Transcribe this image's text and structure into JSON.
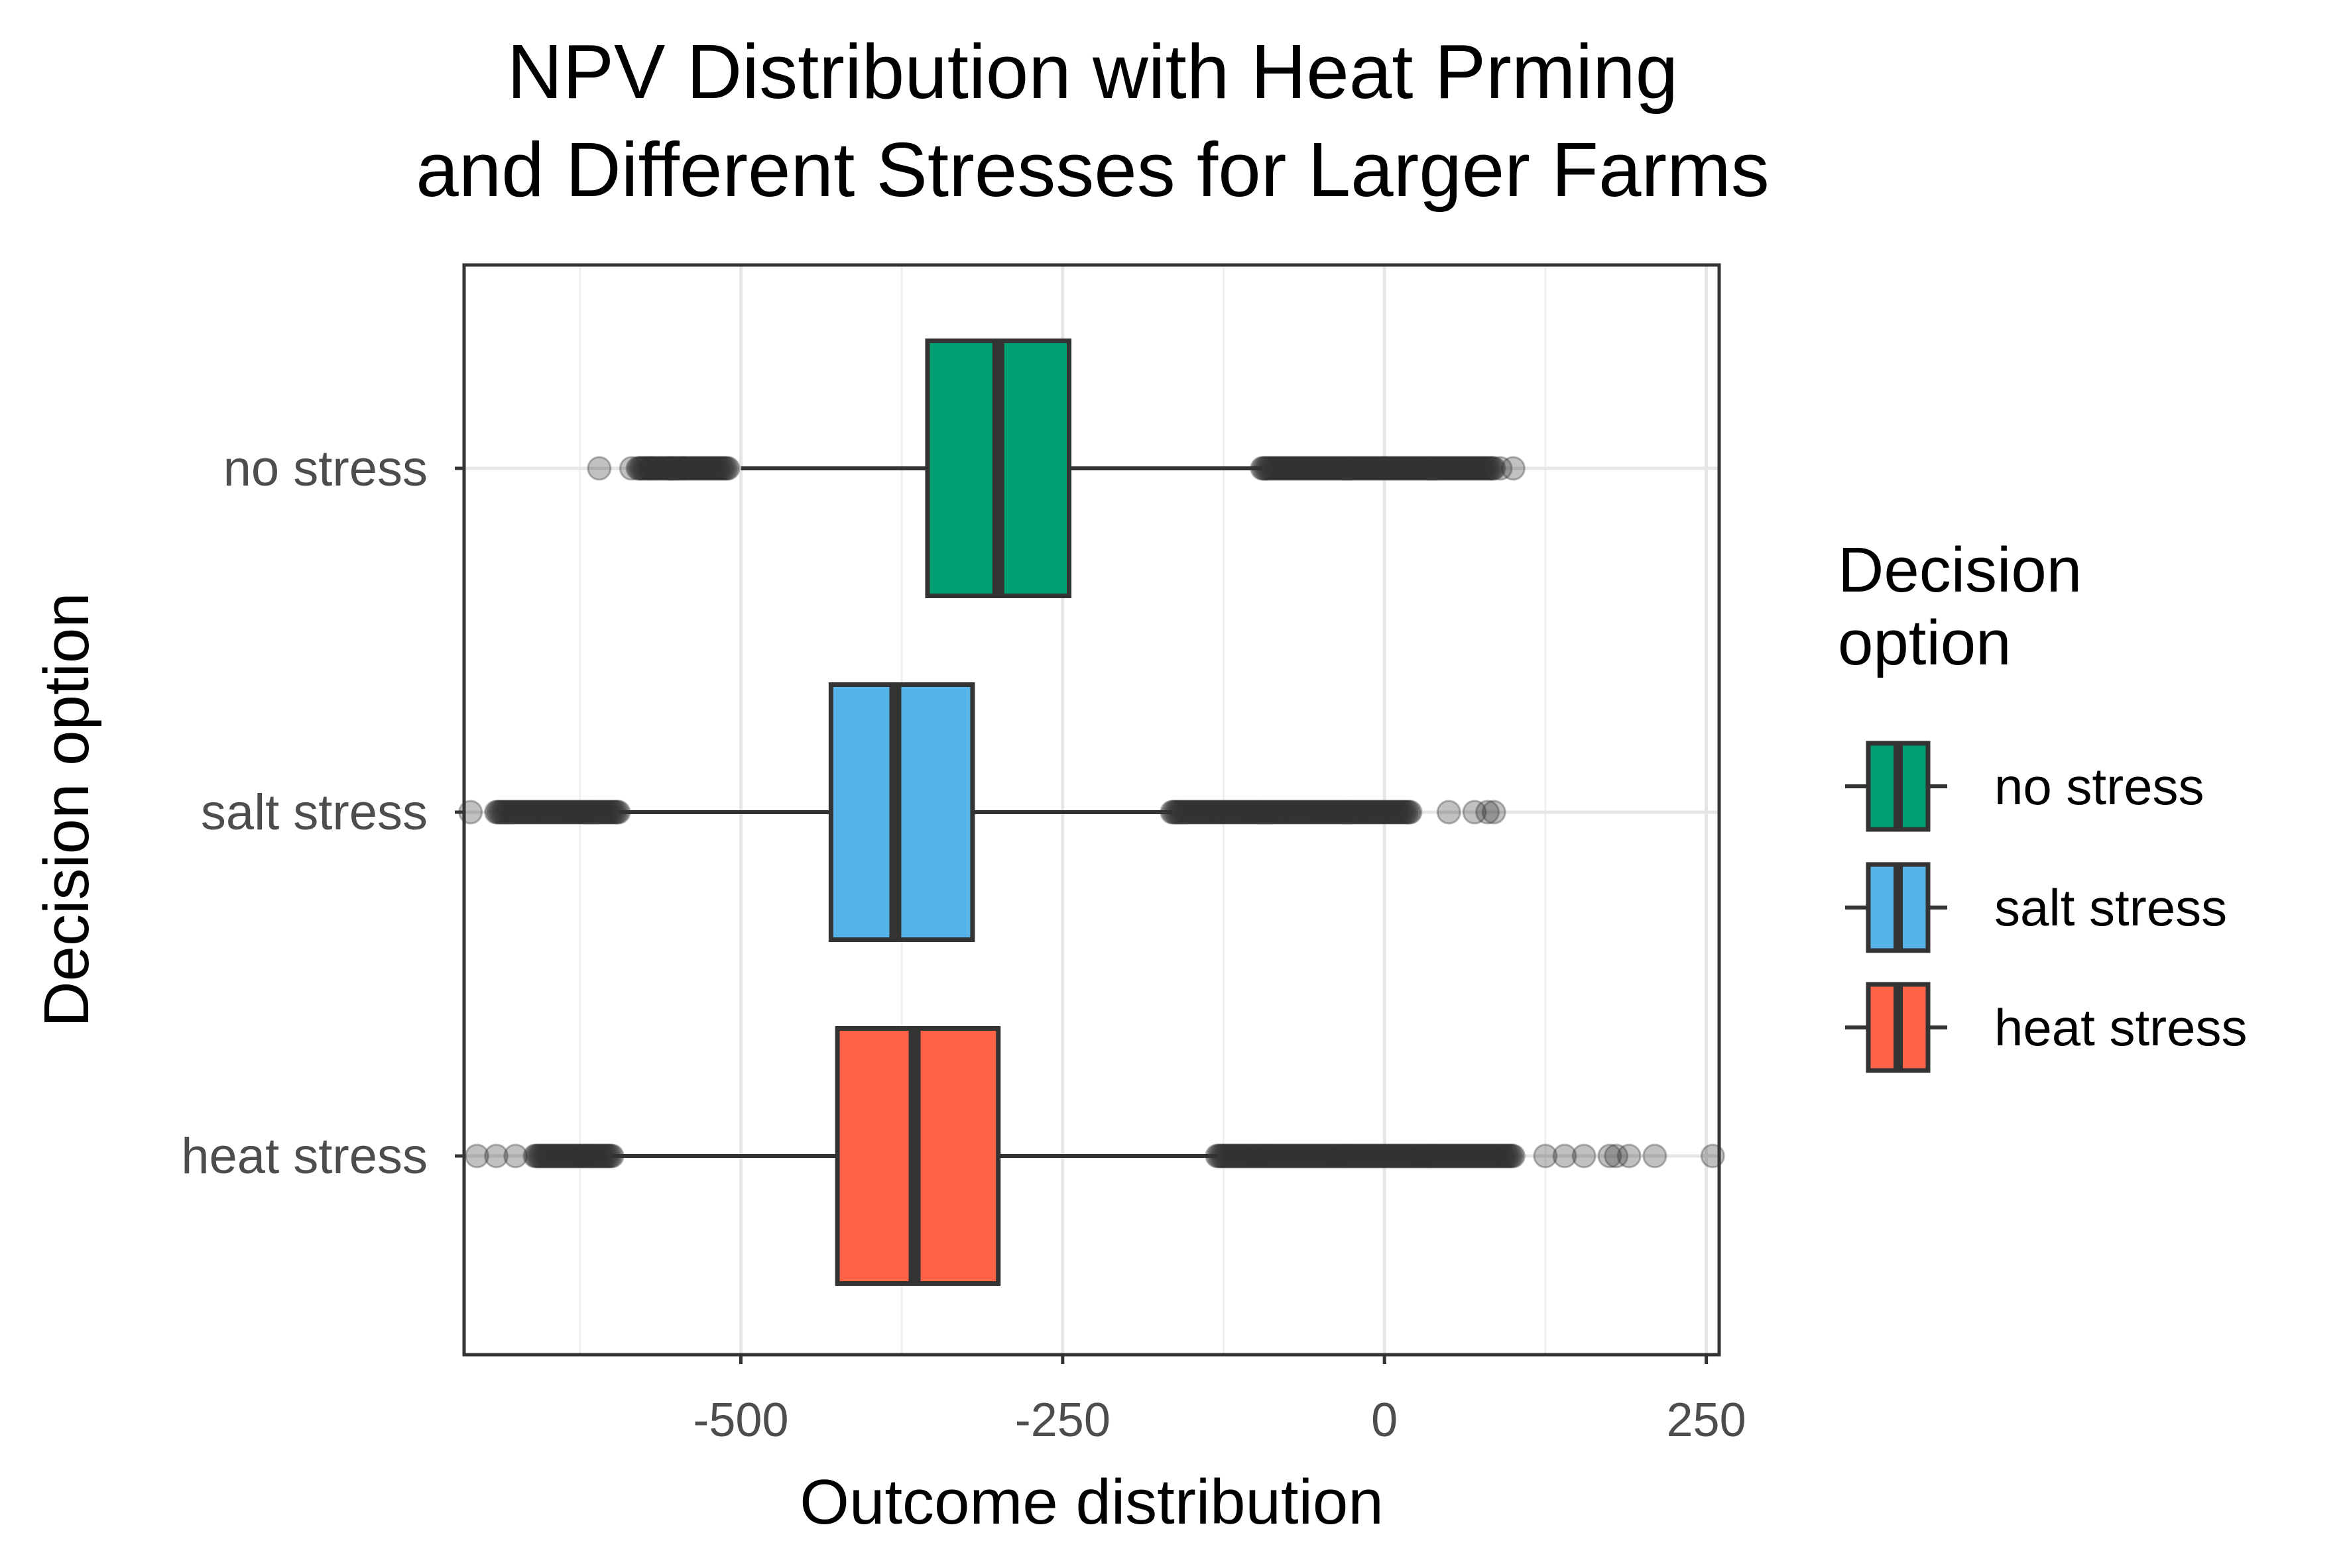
{
  "chart_data": {
    "type": "boxplot",
    "orientation": "horizontal",
    "title_lines": [
      "NPV Distribution with Heat Prming",
      "and Different Stresses for Larger Farms"
    ],
    "xlabel": "Outcome distribution",
    "ylabel": "Decision option",
    "xlim": [
      -715,
      260
    ],
    "x_ticks": [
      -500,
      -250,
      0,
      250
    ],
    "x_tick_labels": [
      "-500",
      "-250",
      "0",
      "250"
    ],
    "grid": true,
    "legend": {
      "title_lines": [
        "Decision",
        "option"
      ],
      "position": "right",
      "entries": [
        "no stress",
        "salt stress",
        "heat stress"
      ]
    },
    "series": [
      {
        "name": "no stress",
        "color": "#009E73",
        "whisker_low": -500,
        "q1": -355,
        "median": -300,
        "q3": -245,
        "whisker_high": -95,
        "outlier_dense_low": [
          -580,
          -510
        ],
        "outlier_dense_high": [
          -95,
          85
        ],
        "outliers": [
          -610,
          -585,
          -570,
          -555,
          -545,
          90,
          100
        ]
      },
      {
        "name": "salt stress",
        "color": "#56B4E9",
        "whisker_low": -595,
        "q1": -430,
        "median": -380,
        "q3": -320,
        "whisker_high": -165,
        "outlier_dense_low": [
          -690,
          -595
        ],
        "outlier_dense_high": [
          -165,
          20
        ],
        "outliers": [
          -710,
          50,
          70,
          80,
          85
        ]
      },
      {
        "name": "heat stress",
        "color": "#FF6347",
        "whisker_low": -600,
        "q1": -425,
        "median": -365,
        "q3": -300,
        "whisker_high": -130,
        "outlier_dense_low": [
          -660,
          -600
        ],
        "outlier_dense_high": [
          -130,
          100
        ],
        "outliers": [
          -705,
          -690,
          -675,
          125,
          140,
          155,
          175,
          180,
          190,
          210,
          255
        ]
      }
    ]
  }
}
